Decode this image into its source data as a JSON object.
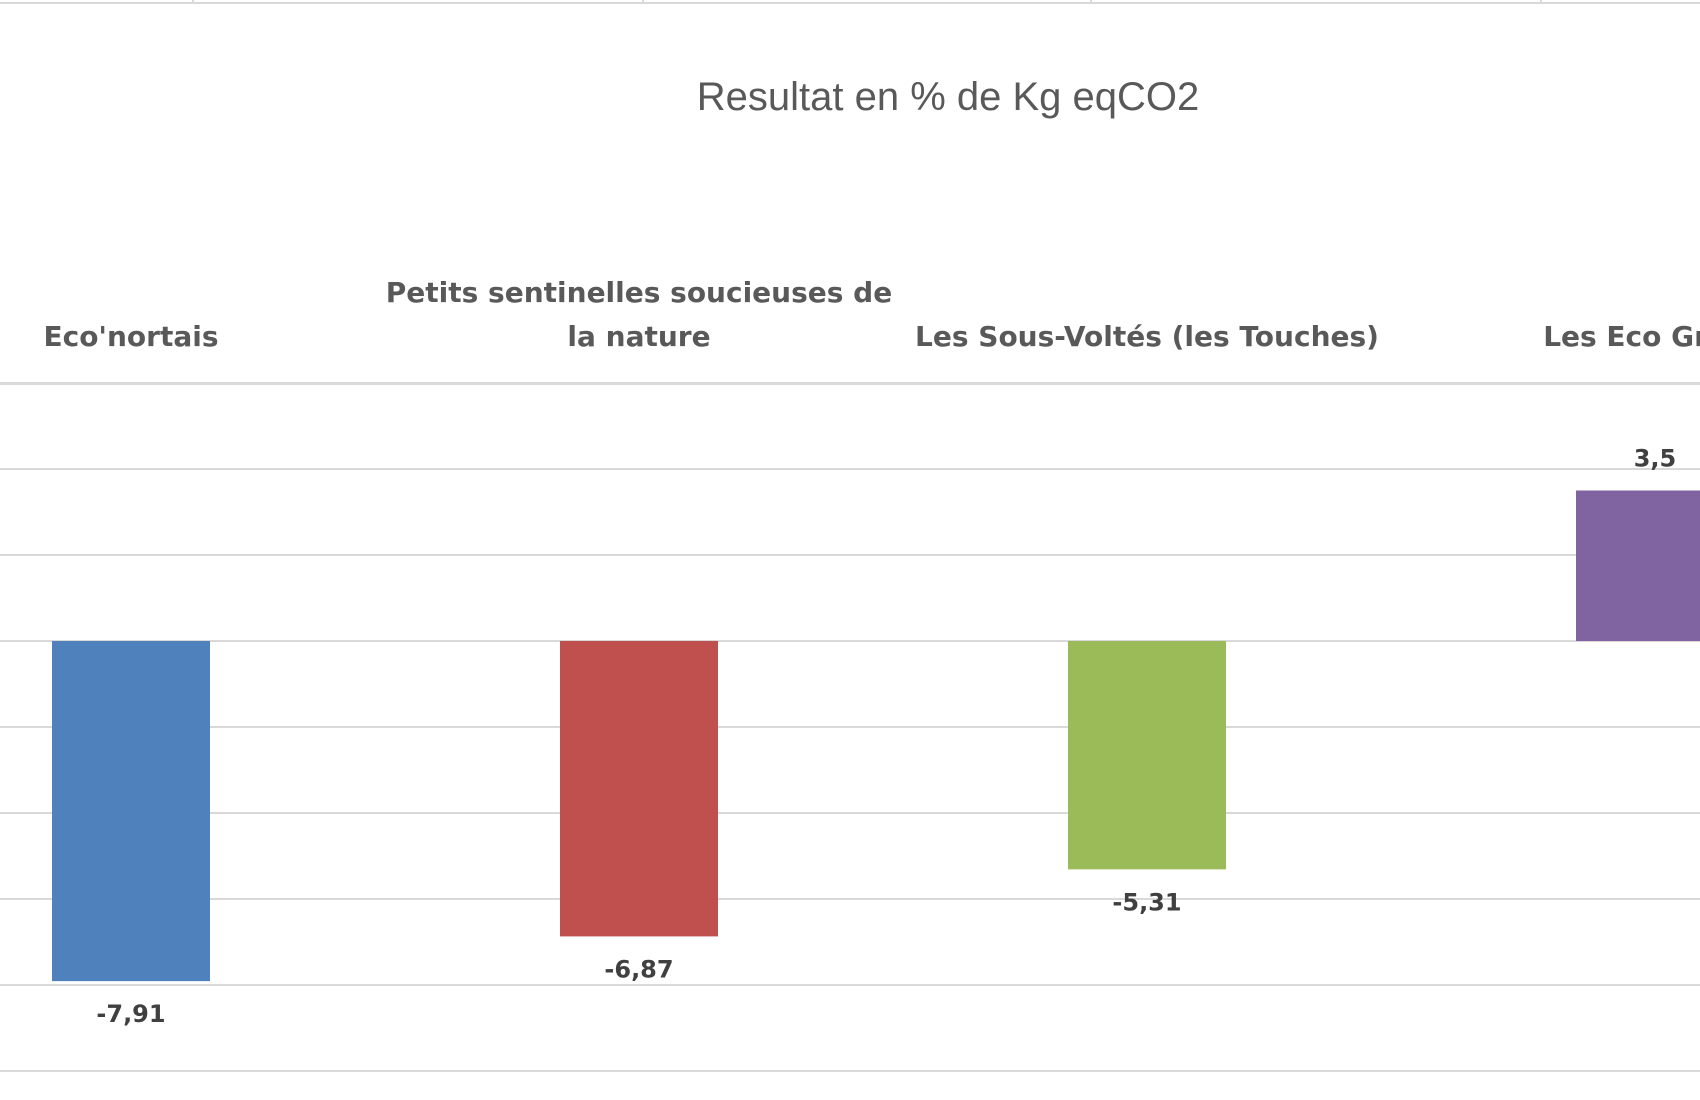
{
  "chart_data": {
    "type": "bar",
    "title": "Resultat en % de Kg eqCO2",
    "categories": [
      "Eco'nortais",
      "Petits sentinelles soucieuses de la nature",
      "Les Sous-Voltés (les Touches)",
      "Les Eco Grand"
    ],
    "category_label_lines": [
      [
        "Eco'nortais"
      ],
      [
        "Petits sentinelles soucieuses de",
        "la nature"
      ],
      [
        "Les Sous-Voltés (les Touches)"
      ],
      [
        "Les Eco Grand"
      ]
    ],
    "values": [
      -7.91,
      -6.87,
      -5.31,
      3.5
    ],
    "value_labels": [
      "-7,91",
      "-6,87",
      "-5,31",
      "3,5"
    ],
    "colors": [
      "#4F81BD",
      "#C0504D",
      "#9BBB59",
      "#8064A2"
    ],
    "ylim": [
      -10,
      6
    ],
    "grid": true,
    "grid_step": 2,
    "xlabel": "",
    "ylabel": "",
    "legend": false
  }
}
